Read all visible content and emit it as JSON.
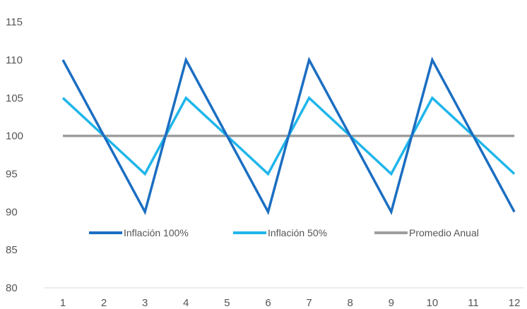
{
  "chart_data": {
    "type": "line",
    "title": "",
    "xlabel": "",
    "ylabel": "",
    "x": [
      1,
      2,
      3,
      4,
      5,
      6,
      7,
      8,
      9,
      10,
      11,
      12
    ],
    "ylim": [
      80,
      115
    ],
    "yticks": [
      80,
      85,
      90,
      95,
      100,
      105,
      110,
      115
    ],
    "grid": false,
    "legend_position": "bottom",
    "series": [
      {
        "name": "Inflación 100%",
        "color": "#1b6ec2",
        "values": [
          110,
          100,
          90,
          110,
          100,
          90,
          110,
          100,
          90,
          110,
          100,
          90
        ]
      },
      {
        "name": "Inflación 50%",
        "color": "#1fb6ea",
        "values": [
          105,
          100,
          95,
          105,
          100,
          95,
          105,
          100,
          95,
          105,
          100,
          95
        ]
      },
      {
        "name": "Promedio Anual",
        "color": "#9e9e9e",
        "values": [
          100,
          100,
          100,
          100,
          100,
          100,
          100,
          100,
          100,
          100,
          100,
          100
        ]
      }
    ]
  }
}
